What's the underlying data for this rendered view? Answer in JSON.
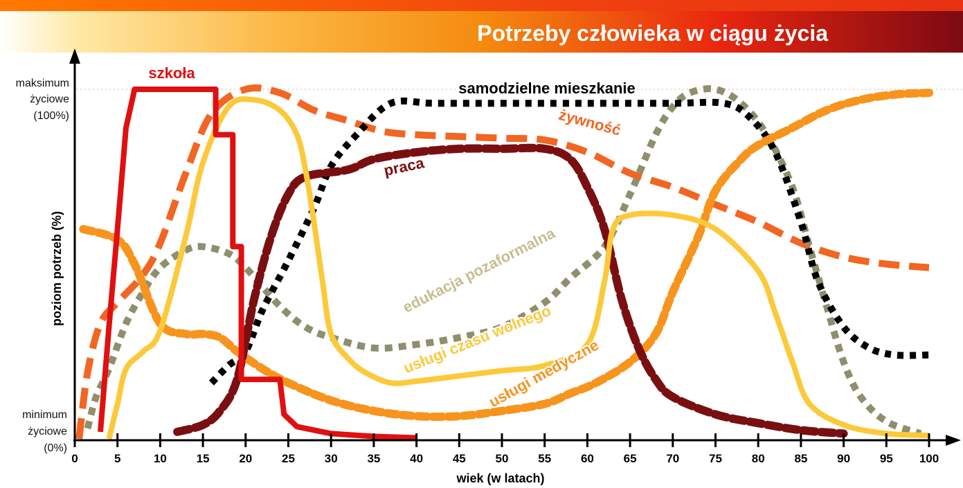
{
  "chart_data": {
    "type": "line",
    "title": "Potrzeby człowieka w ciągu życia",
    "xlabel": "wiek (w latach)",
    "ylabel": "poziom potrzeb (%)",
    "xlim": [
      0,
      100
    ],
    "ylim": [
      0,
      100
    ],
    "x_ticks": [
      0,
      5,
      10,
      15,
      20,
      25,
      30,
      35,
      40,
      45,
      50,
      55,
      60,
      65,
      70,
      75,
      80,
      85,
      90,
      95,
      100
    ],
    "y_annotations": {
      "max": [
        "maksimum",
        "życiowe",
        "(100%)"
      ],
      "min": [
        "minimum",
        "życiowe",
        "(0%)"
      ]
    },
    "grid": false,
    "series": [
      {
        "name": "szkoła",
        "color": "#e01010",
        "style": "solid",
        "points": [
          [
            3,
            2
          ],
          [
            4,
            32
          ],
          [
            5,
            60
          ],
          [
            6,
            89
          ],
          [
            7,
            100
          ],
          [
            16.5,
            100
          ],
          [
            16.5,
            87
          ],
          [
            18.5,
            87
          ],
          [
            18.5,
            55
          ],
          [
            19.5,
            55
          ],
          [
            19.5,
            17
          ],
          [
            24,
            17
          ],
          [
            24.5,
            7
          ],
          [
            26,
            3.5
          ],
          [
            30,
            1.5
          ],
          [
            35,
            0.7
          ],
          [
            40,
            0.3
          ]
        ]
      },
      {
        "name": "żywność",
        "color": "#f26522",
        "style": "dashed",
        "points": [
          [
            0.5,
            0
          ],
          [
            1.5,
            19
          ],
          [
            3,
            33
          ],
          [
            5,
            39
          ],
          [
            8,
            47
          ],
          [
            10,
            56
          ],
          [
            13,
            76
          ],
          [
            16,
            93
          ],
          [
            20,
            100
          ],
          [
            24,
            99
          ],
          [
            28,
            94
          ],
          [
            32,
            91
          ],
          [
            36,
            88
          ],
          [
            40,
            87
          ],
          [
            45,
            86.5
          ],
          [
            50,
            86
          ],
          [
            55,
            85.5
          ],
          [
            60,
            82
          ],
          [
            65,
            76
          ],
          [
            70,
            72
          ],
          [
            75,
            67
          ],
          [
            80,
            62
          ],
          [
            85,
            56
          ],
          [
            90,
            52
          ],
          [
            95,
            50
          ],
          [
            100,
            49
          ]
        ]
      },
      {
        "name": "samodzielne mieszkanie",
        "color": "#000000",
        "style": "dotted",
        "points": [
          [
            16,
            16
          ],
          [
            18,
            21
          ],
          [
            20,
            25
          ],
          [
            22,
            37
          ],
          [
            25,
            51
          ],
          [
            28,
            66
          ],
          [
            30,
            78
          ],
          [
            33,
            87
          ],
          [
            37,
            96
          ],
          [
            42,
            96
          ],
          [
            50,
            96
          ],
          [
            60,
            96
          ],
          [
            70,
            96
          ],
          [
            76,
            96
          ],
          [
            79,
            92
          ],
          [
            82,
            82
          ],
          [
            85,
            62
          ],
          [
            87,
            45
          ],
          [
            90,
            32
          ],
          [
            93,
            26
          ],
          [
            96,
            24
          ],
          [
            100,
            24
          ]
        ]
      },
      {
        "name": "praca",
        "color": "#7a0f12",
        "style": "dashed",
        "points": [
          [
            12,
            2
          ],
          [
            15,
            4
          ],
          [
            17,
            8
          ],
          [
            19,
            17
          ],
          [
            21,
            40
          ],
          [
            23,
            58
          ],
          [
            25,
            70
          ],
          [
            27,
            75
          ],
          [
            32,
            77
          ],
          [
            35,
            80
          ],
          [
            40,
            82
          ],
          [
            45,
            83
          ],
          [
            50,
            83
          ],
          [
            55,
            83
          ],
          [
            58,
            80
          ],
          [
            60,
            72
          ],
          [
            62,
            60
          ],
          [
            64,
            40
          ],
          [
            66,
            26
          ],
          [
            68,
            17
          ],
          [
            70,
            12
          ],
          [
            75,
            7
          ],
          [
            80,
            4.5
          ],
          [
            85,
            2.5
          ],
          [
            90,
            1.5
          ]
        ]
      },
      {
        "name": "usługi czasu wolnego",
        "color": "#fcc93b",
        "style": "solid",
        "points": [
          [
            4,
            0
          ],
          [
            5,
            10
          ],
          [
            6,
            20
          ],
          [
            8,
            25
          ],
          [
            10,
            31
          ],
          [
            13,
            58
          ],
          [
            15,
            79
          ],
          [
            18,
            95
          ],
          [
            21,
            97
          ],
          [
            24,
            94
          ],
          [
            26,
            87
          ],
          [
            27,
            77
          ],
          [
            28,
            62
          ],
          [
            29,
            45
          ],
          [
            30,
            30
          ],
          [
            32,
            23
          ],
          [
            34,
            19
          ],
          [
            37,
            16
          ],
          [
            40,
            16.5
          ],
          [
            45,
            18
          ],
          [
            50,
            19.5
          ],
          [
            55,
            21
          ],
          [
            60,
            27
          ],
          [
            62,
            45
          ],
          [
            63,
            60
          ],
          [
            65,
            64
          ],
          [
            70,
            64
          ],
          [
            75,
            60
          ],
          [
            80,
            48
          ],
          [
            82,
            36
          ],
          [
            84,
            22
          ],
          [
            86,
            10
          ],
          [
            90,
            4
          ],
          [
            95,
            1.5
          ],
          [
            100,
            1
          ]
        ]
      },
      {
        "name": "edukacja pozaformalna",
        "color": "#8f8f6e",
        "style": "dotted",
        "points": [
          [
            1.5,
            3
          ],
          [
            2.5,
            12
          ],
          [
            4,
            20
          ],
          [
            6,
            33
          ],
          [
            8,
            42
          ],
          [
            10,
            49
          ],
          [
            13,
            54
          ],
          [
            15,
            55
          ],
          [
            18,
            53
          ],
          [
            20,
            49
          ],
          [
            24,
            38
          ],
          [
            27,
            32
          ],
          [
            30,
            29
          ],
          [
            35,
            26
          ],
          [
            40,
            27
          ],
          [
            45,
            29
          ],
          [
            50,
            32
          ],
          [
            55,
            39
          ],
          [
            58,
            46
          ],
          [
            62,
            55
          ],
          [
            65,
            70
          ],
          [
            68,
            87
          ],
          [
            70,
            95
          ],
          [
            72,
            99
          ],
          [
            75,
            100
          ],
          [
            78,
            96
          ],
          [
            81,
            87
          ],
          [
            84,
            72
          ],
          [
            86,
            55
          ],
          [
            88,
            38
          ],
          [
            90,
            22
          ],
          [
            92,
            12
          ],
          [
            95,
            5
          ],
          [
            99,
            1.5
          ]
        ]
      },
      {
        "name": "usługi medyczne",
        "color": "#f7941d",
        "style": "dashed",
        "points": [
          [
            1,
            60
          ],
          [
            5,
            57
          ],
          [
            7,
            50
          ],
          [
            10,
            33
          ],
          [
            13,
            30
          ],
          [
            15,
            30
          ],
          [
            17,
            29
          ],
          [
            19,
            25
          ],
          [
            22,
            20
          ],
          [
            25,
            16
          ],
          [
            30,
            11
          ],
          [
            35,
            8
          ],
          [
            40,
            6.5
          ],
          [
            45,
            6.5
          ],
          [
            50,
            8
          ],
          [
            55,
            10
          ],
          [
            58,
            13
          ],
          [
            61,
            16
          ],
          [
            65,
            22
          ],
          [
            68,
            30
          ],
          [
            70,
            42
          ],
          [
            73,
            58
          ],
          [
            75,
            71
          ],
          [
            78,
            80
          ],
          [
            80,
            84
          ],
          [
            84,
            89
          ],
          [
            88,
            94
          ],
          [
            92,
            97
          ],
          [
            96,
            98.5
          ],
          [
            100,
            99
          ]
        ]
      }
    ],
    "labels": [
      {
        "text": "szkoła",
        "series": "szkoła"
      },
      {
        "text": "samodzielne mieszkanie",
        "series": "samodzielne mieszkanie"
      },
      {
        "text": "żywność",
        "series": "żywność"
      },
      {
        "text": "praca",
        "series": "praca"
      },
      {
        "text": "edukacja pozaformalna",
        "series": "edukacja pozaformalna"
      },
      {
        "text": "usługi czasu wolnego",
        "series": "usługi czasu wolnego"
      },
      {
        "text": "usługi medyczne",
        "series": "usługi medyczne"
      }
    ]
  }
}
